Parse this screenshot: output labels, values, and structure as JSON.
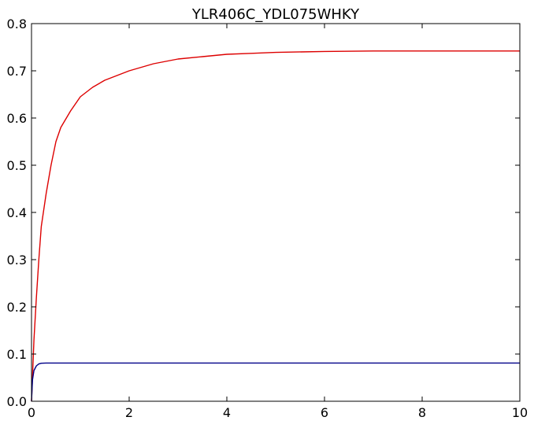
{
  "chart_data": {
    "type": "line",
    "title": "YLR406C_YDL075WHKY",
    "xlabel": "",
    "ylabel": "",
    "xlim": [
      0,
      10
    ],
    "ylim": [
      0,
      0.8
    ],
    "x_ticks": [
      "0",
      "2",
      "4",
      "6",
      "8",
      "10"
    ],
    "y_ticks": [
      "0.0",
      "0.1",
      "0.2",
      "0.3",
      "0.4",
      "0.5",
      "0.6",
      "0.7",
      "0.8"
    ],
    "grid": false,
    "series": [
      {
        "color": "#dd0000",
        "x": [
          0,
          0.05,
          0.1,
          0.15,
          0.2,
          0.3,
          0.4,
          0.5,
          0.6,
          0.8,
          1.0,
          1.25,
          1.5,
          1.75,
          2.0,
          2.5,
          3.0,
          3.5,
          4.0,
          4.5,
          5.0,
          6.0,
          7.0,
          8.0,
          9.0,
          10.0
        ],
        "y": [
          0.0,
          0.13,
          0.22,
          0.3,
          0.37,
          0.44,
          0.5,
          0.55,
          0.58,
          0.615,
          0.645,
          0.665,
          0.68,
          0.69,
          0.7,
          0.715,
          0.725,
          0.73,
          0.735,
          0.737,
          0.739,
          0.741,
          0.742,
          0.742,
          0.742,
          0.742
        ]
      },
      {
        "color": "#000088",
        "x": [
          0,
          0.02,
          0.05,
          0.1,
          0.15,
          0.2,
          0.3,
          0.5,
          1.0,
          2.0,
          4.0,
          6.0,
          8.0,
          10.0
        ],
        "y": [
          0.0,
          0.045,
          0.065,
          0.075,
          0.079,
          0.0805,
          0.081,
          0.081,
          0.081,
          0.081,
          0.081,
          0.081,
          0.081,
          0.081
        ]
      }
    ]
  }
}
